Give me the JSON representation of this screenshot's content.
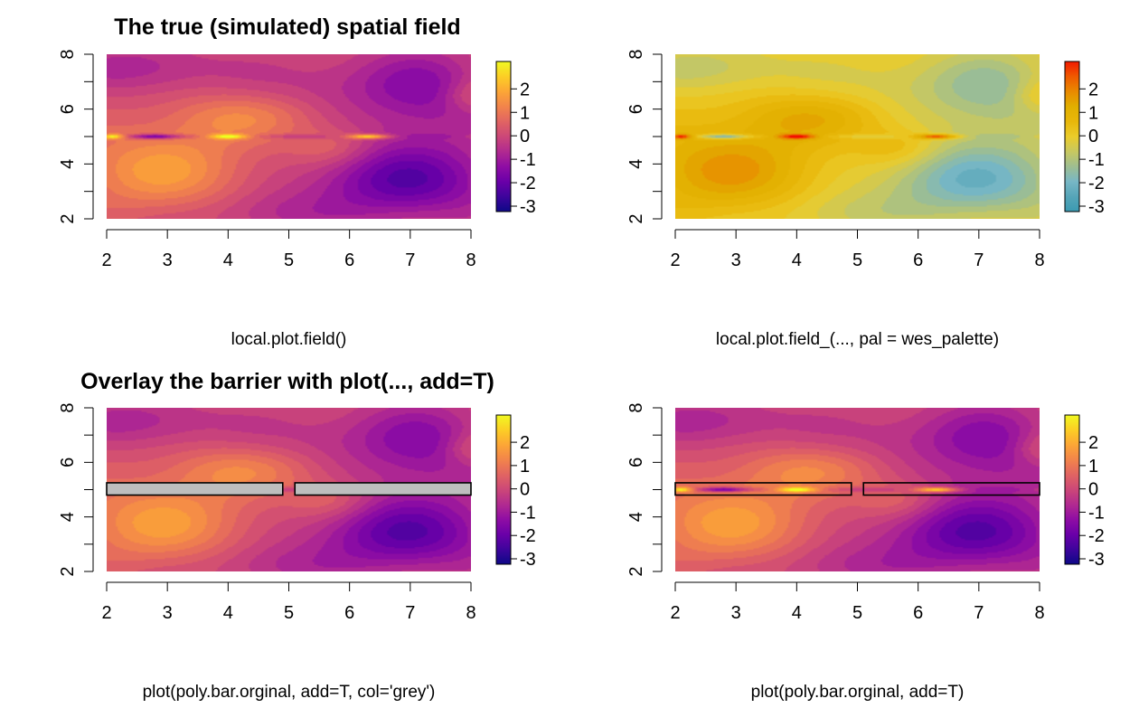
{
  "figure": {
    "panels": [
      {
        "title": "The true (simulated) spatial field",
        "caption": "local.plot.field()",
        "palette": "plasma",
        "barrier": "none"
      },
      {
        "title": "",
        "caption": "local.plot.field_(..., pal = wes_palette)",
        "palette": "wes",
        "barrier": "none"
      },
      {
        "title": "Overlay the barrier with plot(..., add=T)",
        "caption": "plot(poly.bar.orginal, add=T, col='grey')",
        "palette": "plasma",
        "barrier": "filled-grey"
      },
      {
        "title": "",
        "caption": "plot(poly.bar.orginal, add=T)",
        "palette": "plasma",
        "barrier": "outline"
      }
    ],
    "palettes": {
      "plasma": [
        "#0d0887",
        "#3e049c",
        "#6a00a8",
        "#8f0da4",
        "#b12a90",
        "#cc4778",
        "#e16462",
        "#f2844b",
        "#fca636",
        "#fcce25",
        "#f0f921"
      ],
      "wes": [
        "#3b9ab2",
        "#56a5b8",
        "#78b7c5",
        "#9ebe91",
        "#c8c860",
        "#ebcc2a",
        "#e8b70a",
        "#e1af00",
        "#e98a00",
        "#ef5a00",
        "#f21a00"
      ]
    },
    "barrier_color": "#bebebe"
  },
  "chart_data": [
    {
      "type": "heatmap",
      "title": "The true (simulated) spatial field",
      "xlabel": "local.plot.field()",
      "ylabel": "",
      "xlim": [
        2,
        8
      ],
      "ylim": [
        2,
        8
      ],
      "x_ticks": [
        "2",
        "3",
        "4",
        "5",
        "6",
        "7",
        "8"
      ],
      "y_ticks": [
        "2",
        "4",
        "6",
        "8"
      ],
      "colorbar": {
        "range": [
          -3,
          3
        ],
        "ticks": [
          "2",
          "1",
          "0",
          "-1",
          "-2",
          "-3"
        ]
      },
      "features": [
        {
          "description": "warm (positive) region lower-left",
          "x": 3.2,
          "y": 3.8,
          "value": 1.6
        },
        {
          "description": "cool (negative) region right",
          "x": 6.8,
          "y": 3.5,
          "value": -2.2
        },
        {
          "description": "thin strip along y=5",
          "x_range": [
            2,
            8
          ],
          "y": 5,
          "peaks": [
            {
              "x": 2.1,
              "value": 2.5
            },
            {
              "x": 2.8,
              "value": -2.0
            },
            {
              "x": 4.0,
              "value": 2.7
            },
            {
              "x": 6.3,
              "value": 2.4
            }
          ]
        }
      ]
    },
    {
      "type": "heatmap",
      "title": "",
      "xlabel": "local.plot.field_(..., pal = wes_palette)",
      "ylabel": "",
      "xlim": [
        2,
        8
      ],
      "ylim": [
        2,
        8
      ],
      "x_ticks": [
        "2",
        "3",
        "4",
        "5",
        "6",
        "7",
        "8"
      ],
      "y_ticks": [
        "2",
        "4",
        "6",
        "8"
      ],
      "colorbar": {
        "range": [
          -3,
          3
        ],
        "ticks": [
          "2",
          "1",
          "0",
          "-1",
          "-2",
          "-3"
        ]
      },
      "features": "same field as panel 1, wes_palette colours"
    },
    {
      "type": "heatmap",
      "title": "Overlay the barrier with plot(..., add=T)",
      "xlabel": "plot(poly.bar.orginal, add=T, col='grey')",
      "ylabel": "",
      "xlim": [
        2,
        8
      ],
      "ylim": [
        2,
        8
      ],
      "x_ticks": [
        "2",
        "3",
        "4",
        "5",
        "6",
        "7",
        "8"
      ],
      "y_ticks": [
        "2",
        "4",
        "6",
        "8"
      ],
      "colorbar": {
        "range": [
          -3,
          3
        ],
        "ticks": [
          "2",
          "1",
          "0",
          "-1",
          "-2",
          "-3"
        ]
      },
      "barrier_polygons": [
        {
          "x": [
            2,
            4.9
          ],
          "y": [
            4.8,
            5.25
          ],
          "fill": "grey"
        },
        {
          "x": [
            5.1,
            8
          ],
          "y": [
            4.8,
            5.25
          ],
          "fill": "grey"
        }
      ]
    },
    {
      "type": "heatmap",
      "title": "",
      "xlabel": "plot(poly.bar.orginal, add=T)",
      "ylabel": "",
      "xlim": [
        2,
        8
      ],
      "ylim": [
        2,
        8
      ],
      "x_ticks": [
        "2",
        "3",
        "4",
        "5",
        "6",
        "7",
        "8"
      ],
      "y_ticks": [
        "2",
        "4",
        "6",
        "8"
      ],
      "colorbar": {
        "range": [
          -3,
          3
        ],
        "ticks": [
          "2",
          "1",
          "0",
          "-1",
          "-2",
          "-3"
        ]
      },
      "barrier_polygons": [
        {
          "x": [
            2,
            4.9
          ],
          "y": [
            4.8,
            5.25
          ],
          "fill": "none"
        },
        {
          "x": [
            5.1,
            8
          ],
          "y": [
            4.8,
            5.25
          ],
          "fill": "none"
        }
      ]
    }
  ]
}
